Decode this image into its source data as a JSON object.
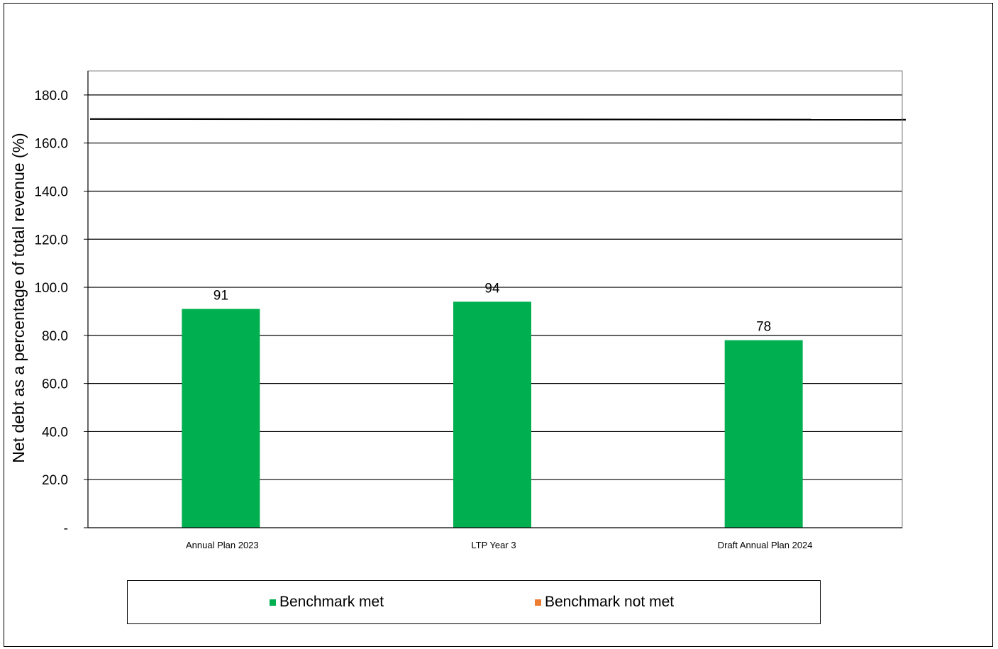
{
  "chart_data": {
    "type": "bar",
    "categories": [
      "Annual Plan 2023",
      "LTP Year 3",
      "Draft Annual Plan 2024"
    ],
    "values": [
      91,
      94,
      78
    ],
    "data_labels": [
      "91",
      "94",
      "78"
    ],
    "series": [
      {
        "name": "Benchmark met",
        "values": [
          91,
          94,
          78
        ],
        "color": "#00B050"
      },
      {
        "name": "Benchmark not met",
        "values": [
          null,
          null,
          null
        ],
        "color": "#ED7D31"
      }
    ],
    "benchmark_value": 170,
    "ylabel": "Net debt as a percentage of total revenue (%)",
    "xlabel": "",
    "ylim": [
      0,
      190
    ],
    "yticks": [
      0,
      20,
      40,
      60,
      80,
      100,
      120,
      140,
      160,
      180
    ],
    "ytick_labels": [
      "-",
      "20.0",
      "40.0",
      "60.0",
      "80.0",
      "100.0",
      "120.0",
      "140.0",
      "160.0",
      "180.0"
    ],
    "grid": true,
    "legend": {
      "placement": "bottom",
      "items": [
        {
          "label": "Benchmark met",
          "color": "#00B050"
        },
        {
          "label": "Benchmark not met",
          "color": "#ED7D31"
        }
      ]
    }
  }
}
